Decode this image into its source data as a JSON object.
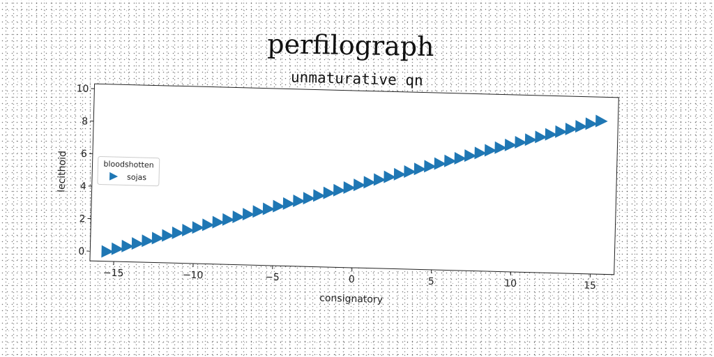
{
  "figure": {
    "suptitle": "perfilograph"
  },
  "chart_data": {
    "type": "scatter",
    "title": "unmaturative qn",
    "xlabel": "consignatory",
    "ylabel": "lecithoid",
    "xlim": [
      -16.5,
      16.5
    ],
    "ylim": [
      -0.6,
      10.3
    ],
    "xticks": [
      -15,
      -10,
      -5,
      0,
      5,
      10,
      15
    ],
    "xtick_labels": [
      "−15",
      "−10",
      "−5",
      "0",
      "5",
      "10",
      "15"
    ],
    "yticks": [
      0,
      2,
      4,
      6,
      8,
      10
    ],
    "ytick_labels": [
      "0",
      "2",
      "4",
      "6",
      "8",
      "10"
    ],
    "grid": false,
    "legend": {
      "title": "bloodshotten",
      "placement": "center-left",
      "entries": [
        "sojas"
      ]
    },
    "series": [
      {
        "name": "sojas",
        "marker": "triangle-right",
        "color": "#1f77b4",
        "x": [
          -15.5,
          -14.87,
          -14.24,
          -13.61,
          -12.98,
          -12.35,
          -11.72,
          -11.09,
          -10.46,
          -9.83,
          -9.2,
          -8.57,
          -7.94,
          -7.31,
          -6.68,
          -6.05,
          -5.42,
          -4.79,
          -4.16,
          -3.53,
          -2.9,
          -2.27,
          -1.64,
          -1.01,
          -0.38,
          0.25,
          0.88,
          1.51,
          2.14,
          2.77,
          3.4,
          4.03,
          4.66,
          5.29,
          5.92,
          6.55,
          7.18,
          7.81,
          8.44,
          9.07,
          9.7,
          10.33,
          10.96,
          11.59,
          12.22,
          12.85,
          13.48,
          14.11,
          14.74,
          15.37
        ],
        "y": [
          0.0,
          0.18,
          0.36,
          0.54,
          0.72,
          0.9,
          1.08,
          1.26,
          1.44,
          1.62,
          1.8,
          1.98,
          2.16,
          2.34,
          2.52,
          2.7,
          2.88,
          3.06,
          3.24,
          3.42,
          3.6,
          3.78,
          3.96,
          4.14,
          4.32,
          4.5,
          4.68,
          4.86,
          5.04,
          5.22,
          5.4,
          5.58,
          5.76,
          5.94,
          6.12,
          6.3,
          6.48,
          6.66,
          6.84,
          7.02,
          7.2,
          7.38,
          7.56,
          7.74,
          7.92,
          8.1,
          8.28,
          8.46,
          8.64,
          8.82
        ]
      }
    ]
  }
}
